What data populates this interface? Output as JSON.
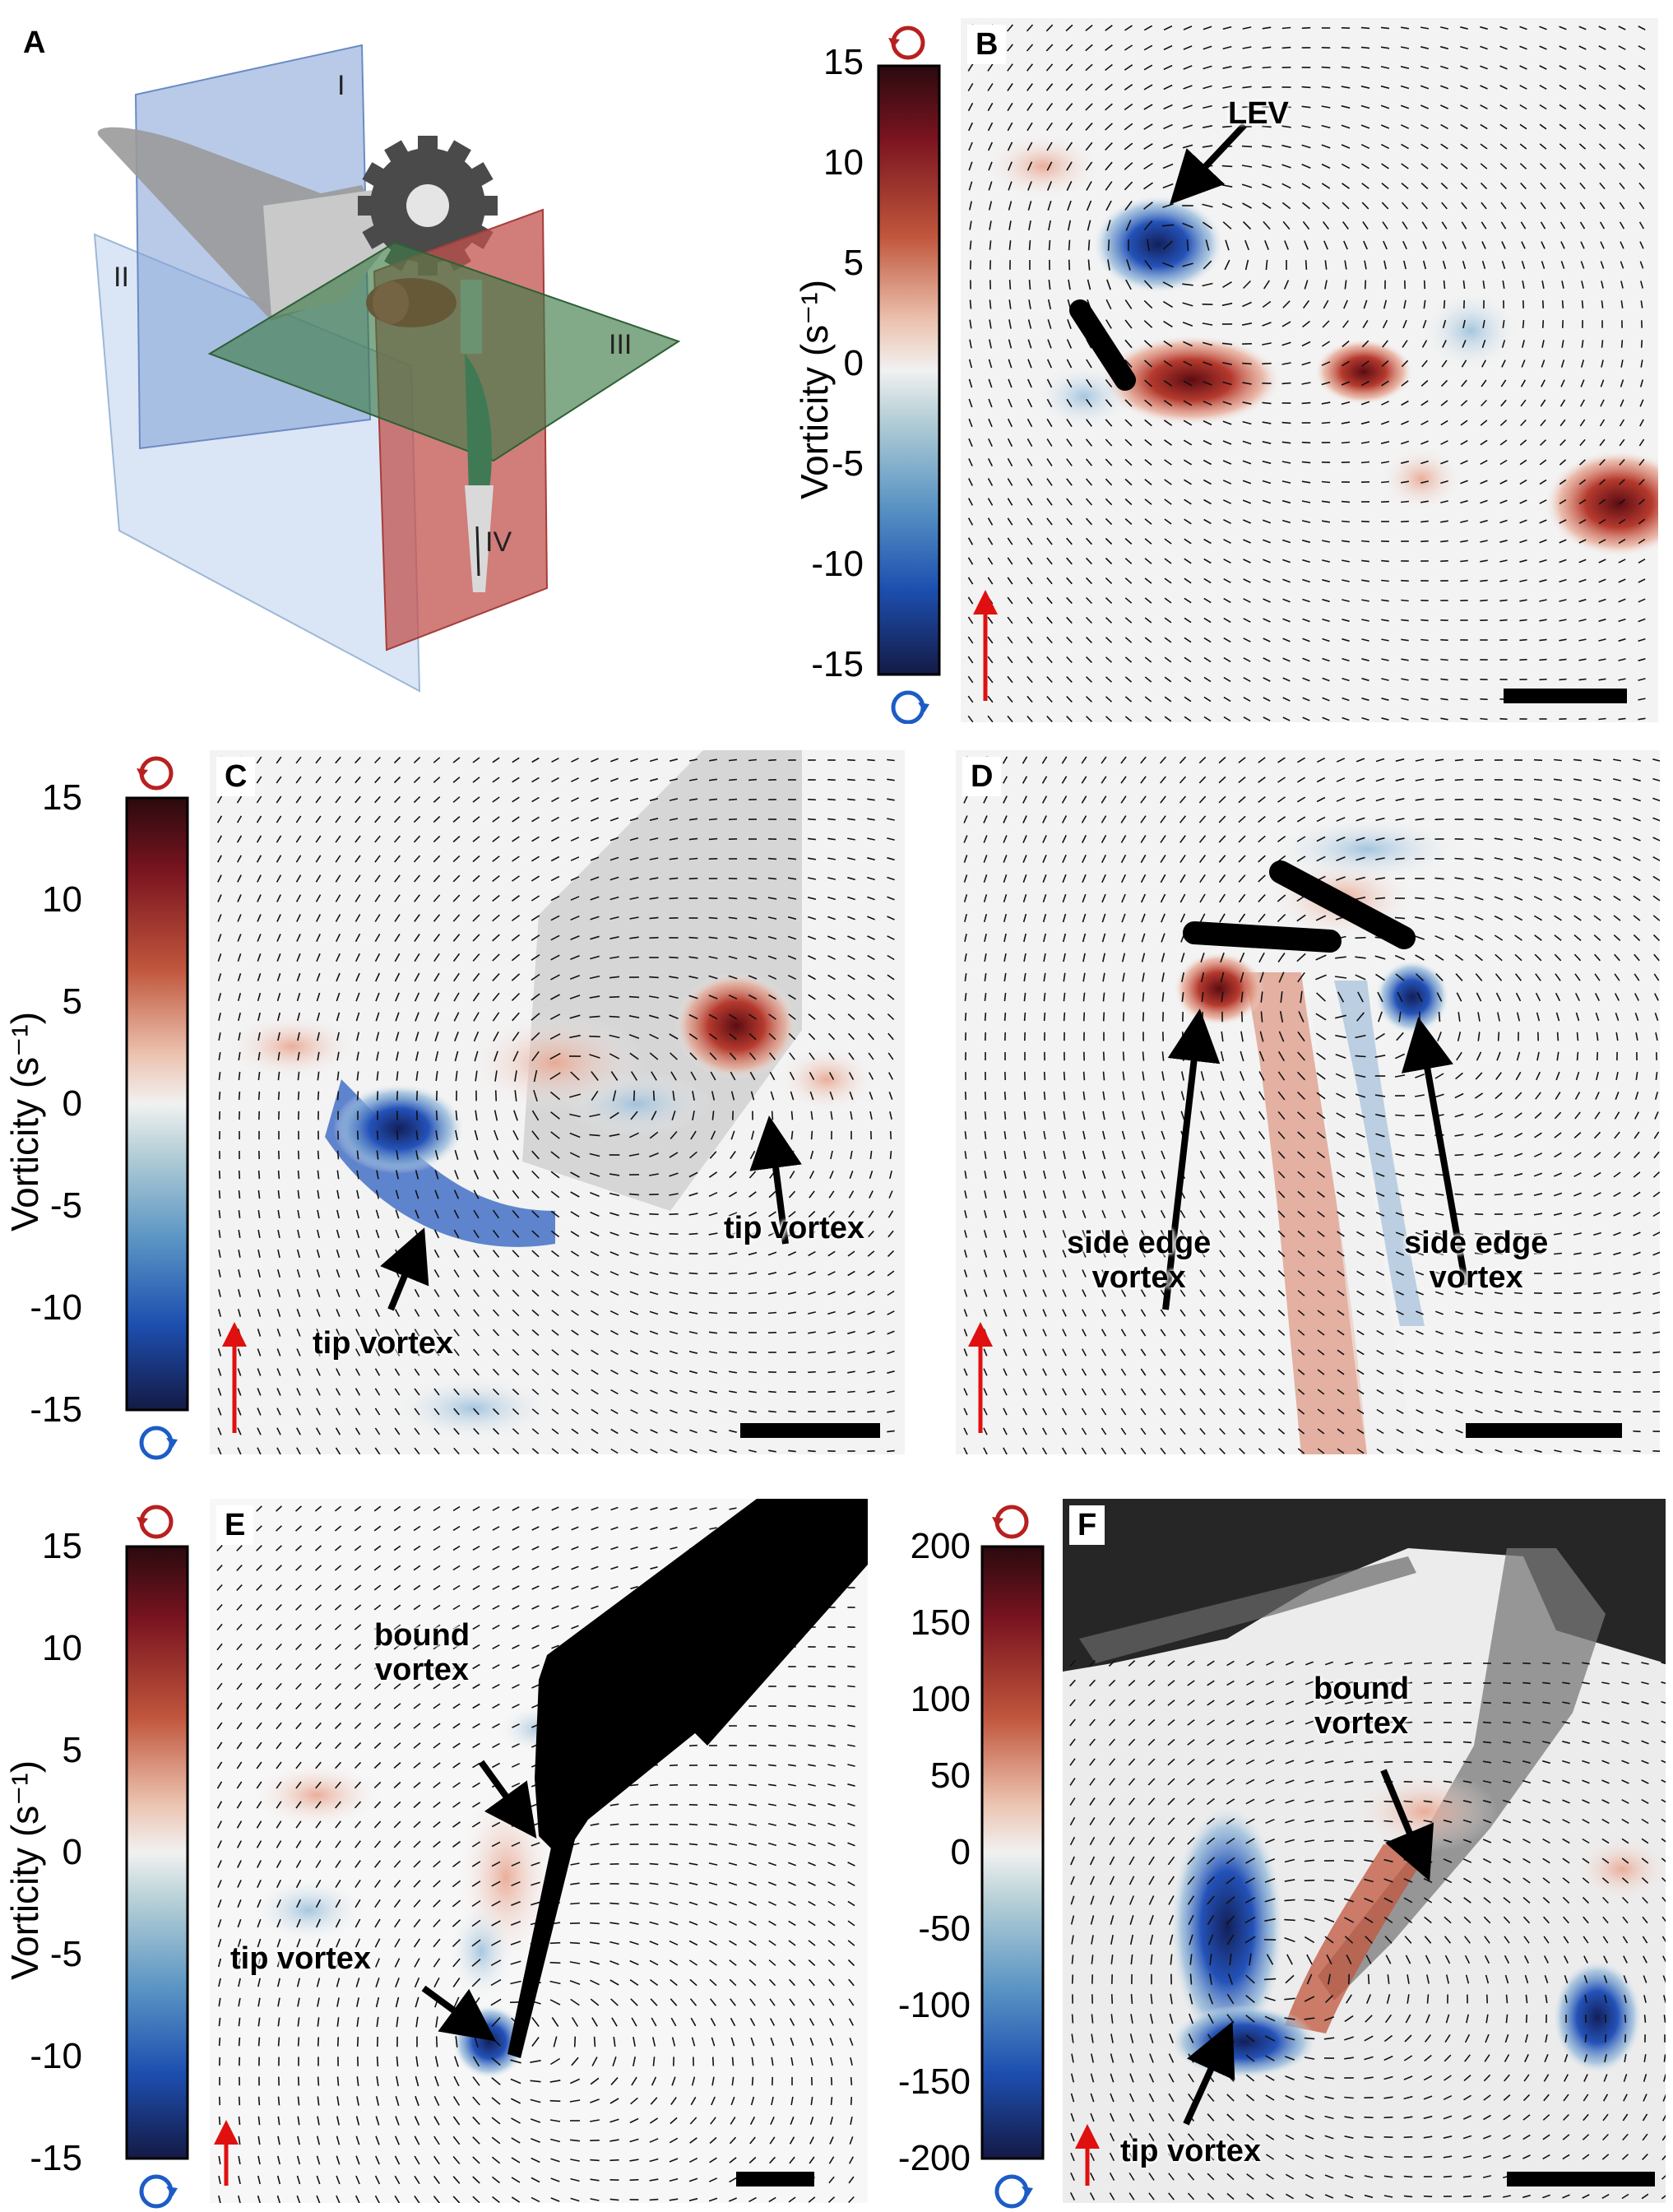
{
  "panels": {
    "A": {
      "letter": "A",
      "planes": [
        "I",
        "II",
        "III",
        "IV"
      ]
    },
    "B": {
      "letter": "B",
      "ylabel": "Vorticity (s⁻¹)",
      "ticks": [
        "15",
        "10",
        "5",
        "0",
        "-5",
        "-10",
        "-15"
      ],
      "annotations": [
        "LEV"
      ]
    },
    "C": {
      "letter": "C",
      "ylabel": "Vorticity (s⁻¹)",
      "ticks": [
        "15",
        "10",
        "5",
        "0",
        "-5",
        "-10",
        "-15"
      ],
      "annotations": [
        "tip vortex",
        "tip vortex"
      ]
    },
    "D": {
      "letter": "D",
      "annotations": [
        "side edge\nvortex",
        "side edge\nvortex"
      ]
    },
    "E": {
      "letter": "E",
      "ylabel": "Vorticity (s⁻¹)",
      "ticks": [
        "15",
        "10",
        "5",
        "0",
        "-5",
        "-10",
        "-15"
      ],
      "annotations": [
        "bound\nvortex",
        "tip vortex"
      ]
    },
    "F": {
      "letter": "F",
      "ticks": [
        "200",
        "150",
        "100",
        "50",
        "0",
        "-50",
        "-100",
        "-150",
        "-200"
      ],
      "annotations": [
        "bound\nvortex",
        "tip vortex"
      ]
    }
  },
  "colors": {
    "positive_vorticity": "#8b1a1a",
    "negative_vorticity": "#1f3f9a",
    "reference_arrow": "#e01010"
  }
}
